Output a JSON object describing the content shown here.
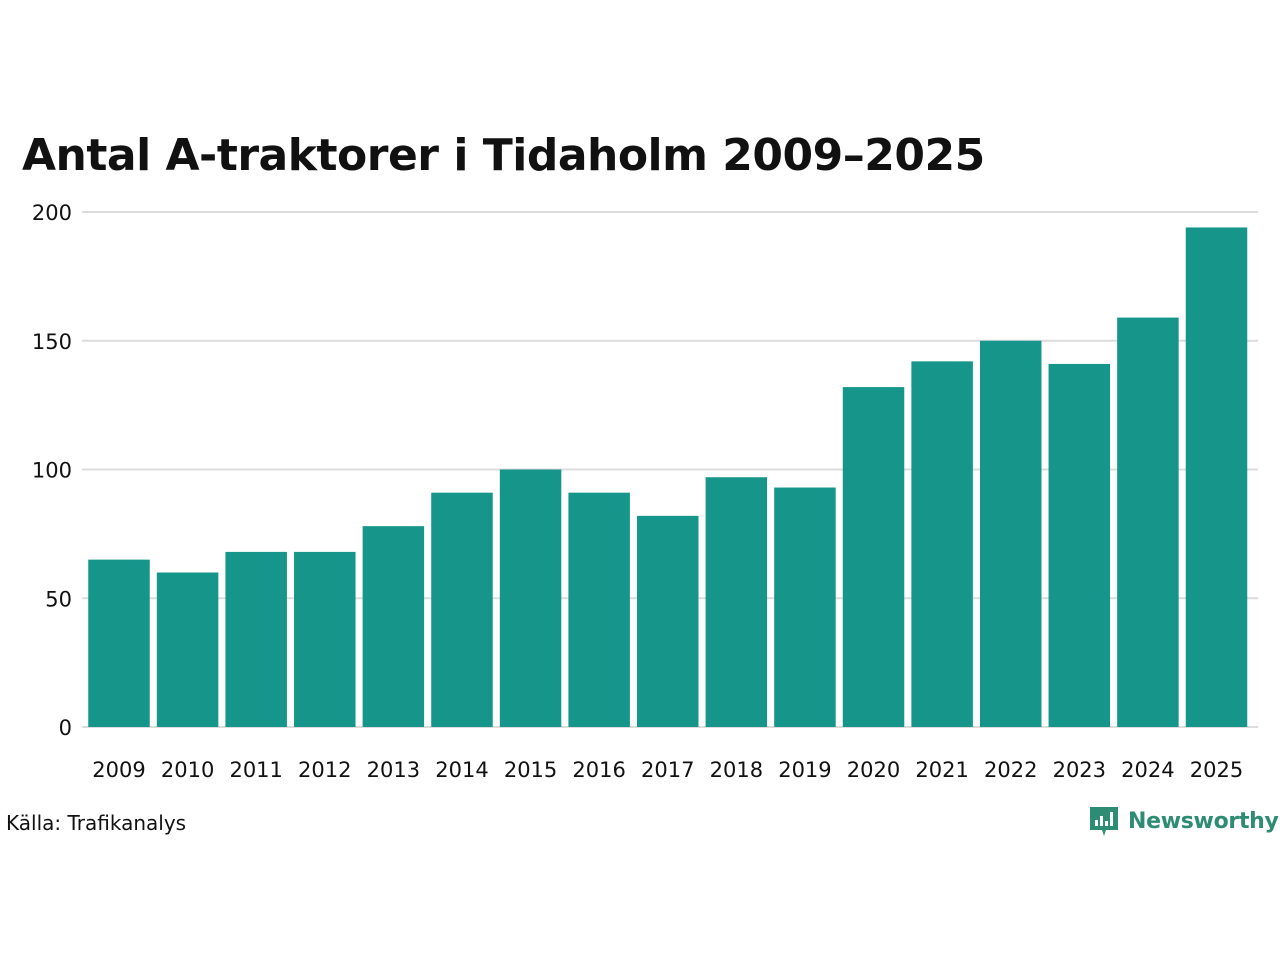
{
  "chart_data": {
    "type": "bar",
    "title": "Antal A-traktorer i Tidaholm 2009–2025",
    "categories": [
      "2009",
      "2010",
      "2011",
      "2012",
      "2013",
      "2014",
      "2015",
      "2016",
      "2017",
      "2018",
      "2019",
      "2020",
      "2021",
      "2022",
      "2023",
      "2024",
      "2025"
    ],
    "values": [
      65,
      60,
      68,
      68,
      78,
      91,
      100,
      91,
      82,
      97,
      93,
      132,
      142,
      150,
      141,
      159,
      194
    ],
    "xlabel": "",
    "ylabel": "",
    "ylim": [
      0,
      200
    ],
    "yticks": [
      "0",
      "50",
      "100",
      "150",
      "200"
    ],
    "bar_color": "#16968a",
    "grid": true
  },
  "footer": {
    "source": "Källa: Trafikanalys",
    "brand": "Newsworthy",
    "brand_color": "#2e8b74"
  }
}
